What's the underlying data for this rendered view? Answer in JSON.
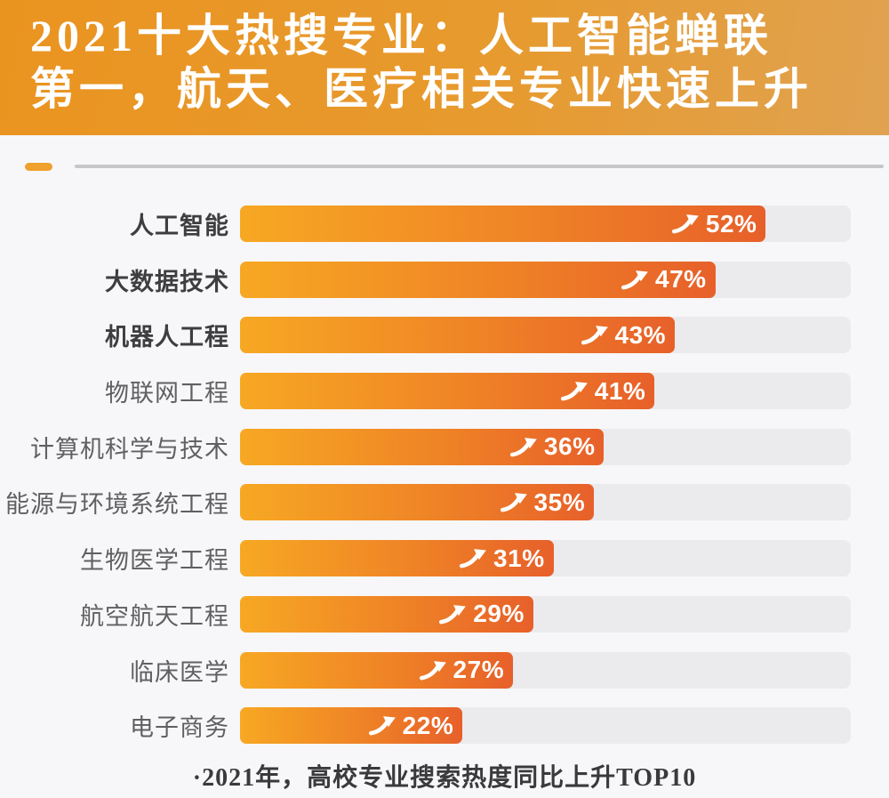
{
  "header": {
    "title_line1": "2021十大热搜专业：人工智能蝉联",
    "title_line2": "第一，航天、医疗相关专业快速上升"
  },
  "chart_data": {
    "type": "bar",
    "orientation": "horizontal",
    "title": "2021十大热搜专业：人工智能蝉联第一，航天、医疗相关专业快速上升",
    "caption": "·2021年，高校专业搜索热度同比上升TOP10",
    "categories": [
      "人工智能",
      "大数据技术",
      "机器人工程",
      "物联网工程",
      "计算机科学与技术",
      "能源与环境系统工程",
      "生物医学工程",
      "航空航天工程",
      "临床医学",
      "电子商务"
    ],
    "values": [
      52,
      47,
      43,
      41,
      36,
      35,
      31,
      29,
      27,
      22
    ],
    "value_suffix": "%",
    "emphasized_categories_count": 3,
    "axis_max": 60.4,
    "grid": false,
    "legend": "none",
    "value_icon": "rise-arrow",
    "colors": {
      "bar_gradient_start": "#f7a823",
      "bar_gradient_end": "#e7602a",
      "bar_track": "#ebebed",
      "header_gradient_start": "#ea9420",
      "header_gradient_end": "#e0a250",
      "header_text": "#ffffff",
      "label_emphasized": "#3e3e40",
      "label_normal": "#606062",
      "value_text": "#ffffff",
      "divider_dash": "#f0a02c",
      "divider_rule": "#c7c7c9",
      "background": "#f7f7f9"
    }
  },
  "footer": {
    "caption": "·2021年，高校专业搜索热度同比上升TOP10"
  }
}
